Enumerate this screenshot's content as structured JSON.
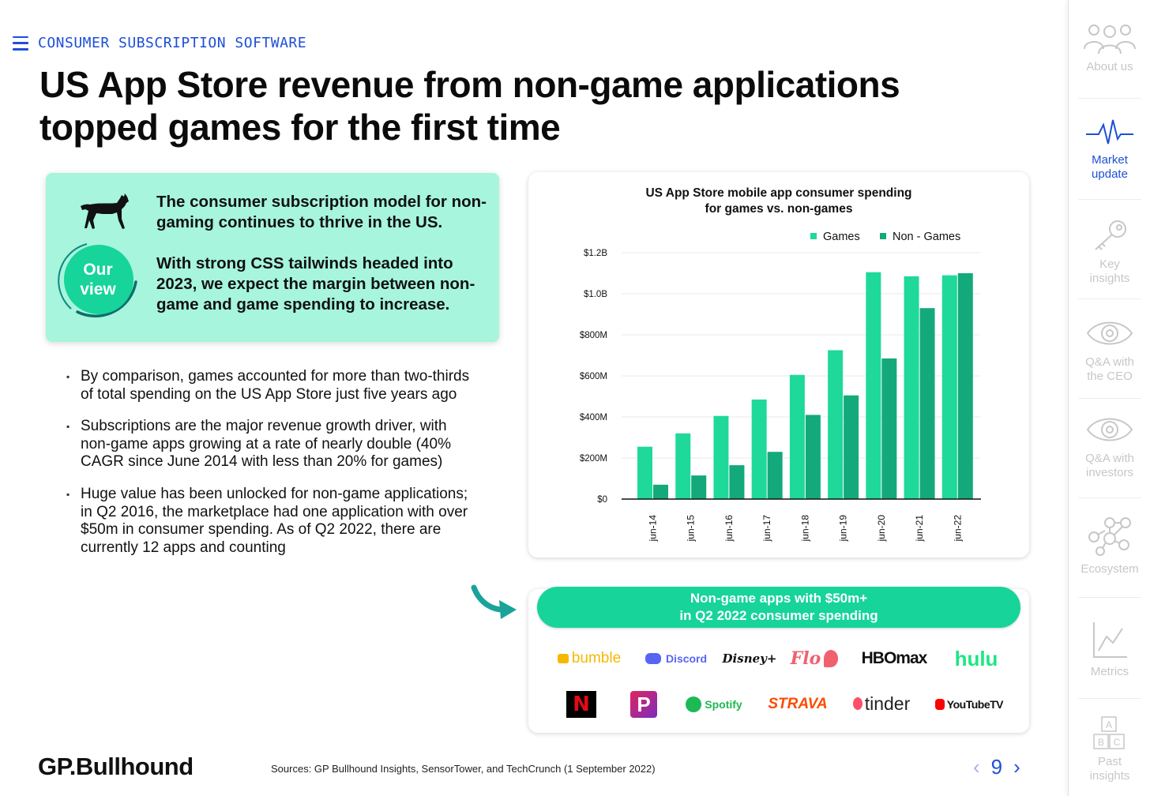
{
  "header": {
    "section": "CONSUMER SUBSCRIPTION SOFTWARE",
    "title": "US App Store revenue from non-game applications topped games for the first time"
  },
  "view_box": {
    "badge": "Our view",
    "paragraphs": [
      "The consumer subscription model for non-gaming continues to thrive in the US.",
      "With strong CSS tailwinds headed into 2023, we expect the margin between non-game and game spending to increase."
    ]
  },
  "bullets": [
    "By comparison, games accounted for more than two-thirds of total spending on the US App Store just five years ago",
    "Subscriptions are the major revenue growth driver, with non-game apps growing at a rate of nearly double (40% CAGR since June 2014 with less than 20% for games)",
    "Huge value has been unlocked for non-game applications; in Q2 2016, the marketplace had one application with over $50m in consumer spending. As of Q2 2022, there are currently 12 apps and counting"
  ],
  "chart_data": {
    "type": "bar",
    "title": "US App Store mobile app consumer spending for games vs. non-games",
    "categories": [
      "jun-14",
      "jun-15",
      "jun-16",
      "jun-17",
      "jun-18",
      "jun-19",
      "jun-20",
      "jun-21",
      "jun-22"
    ],
    "series": [
      {
        "name": "Games",
        "color": "#1ed99a",
        "values": [
          0.255,
          0.32,
          0.405,
          0.485,
          0.605,
          0.725,
          1.105,
          1.085,
          1.09
        ]
      },
      {
        "name": "Non - Games",
        "color": "#14a97a",
        "values": [
          0.07,
          0.115,
          0.165,
          0.23,
          0.41,
          0.505,
          0.685,
          0.93,
          1.1
        ]
      }
    ],
    "ylim": [
      0,
      1.2
    ],
    "yticks": [
      0,
      0.2,
      0.4,
      0.6,
      0.8,
      1.0,
      1.2
    ],
    "ytick_labels": [
      "$0",
      "$200M",
      "$400M",
      "$600M",
      "$800M",
      "$1.0B",
      "$1.2B"
    ],
    "xlabel": "",
    "ylabel": "",
    "legend": "top-right",
    "grid": true
  },
  "apps": {
    "banner_line1": "Non-game apps with $50m+",
    "banner_line2": "in Q2 2022 consumer spending",
    "logos": [
      "bumble",
      "Discord",
      "Disney+",
      "Flo",
      "HBOmax",
      "hulu",
      "N",
      "P",
      "Spotify",
      "STRAVA",
      "tinder",
      "YouTubeTV"
    ]
  },
  "footer": {
    "brand": "GP.Bullhound",
    "sources": "Sources: GP Bullhound Insights, SensorTower, and TechCrunch (1 September 2022)",
    "page": "9"
  },
  "sidebar": [
    {
      "label": "About us",
      "icon": "people-icon",
      "active": false
    },
    {
      "label": "Market update",
      "icon": "pulse-icon",
      "active": true
    },
    {
      "label": "Key insights",
      "icon": "key-icon",
      "active": false
    },
    {
      "label": "Q&A with the CEO",
      "icon": "eye-icon",
      "active": false
    },
    {
      "label": "Q&A with investors",
      "icon": "eye-icon",
      "active": false
    },
    {
      "label": "Ecosystem",
      "icon": "network-icon",
      "active": false
    },
    {
      "label": "Metrics",
      "icon": "line-chart-icon",
      "active": false
    },
    {
      "label": "Past insights",
      "icon": "abc-blocks-icon",
      "active": false
    }
  ],
  "colors": {
    "accent": "#1e4fd8",
    "mint": "#a6f5dc",
    "green": "#16d49a"
  }
}
